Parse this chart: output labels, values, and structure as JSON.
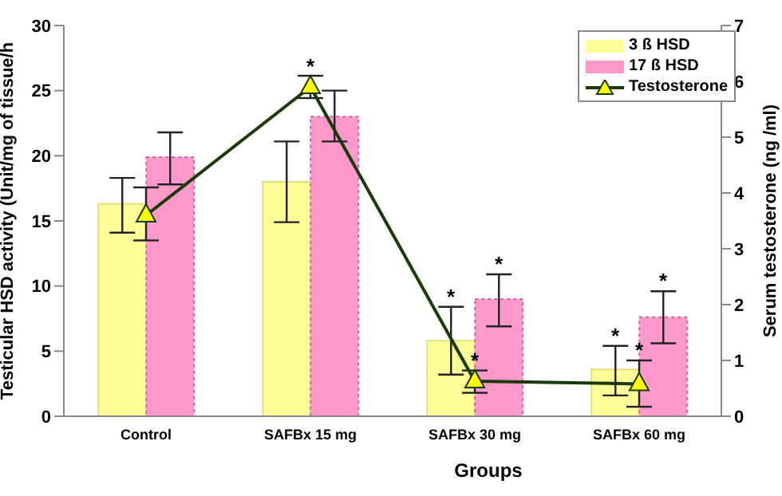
{
  "chart_data": {
    "type": "bar",
    "xlabel": "Groups",
    "ylabel": "Testicular HSD activity (Unit/mg of tissue/h",
    "y2label": "Serum testosterone (ng /ml)",
    "categories": [
      "Control",
      "SAFBx 15 mg",
      "SAFBx 30 mg",
      "SAFBx 60 mg"
    ],
    "series": [
      {
        "name": "3 ß HSD",
        "color": "#ffff99",
        "values": [
          16.3,
          18.0,
          5.8,
          3.6
        ],
        "errors": [
          [
            14.1,
            18.3
          ],
          [
            14.9,
            21.1
          ],
          [
            3.2,
            8.4
          ],
          [
            1.6,
            5.4
          ]
        ]
      },
      {
        "name": "17 ß HSD",
        "color": "#ff99cc",
        "values": [
          19.9,
          23.0,
          9.0,
          7.6
        ],
        "errors": [
          [
            17.8,
            21.8
          ],
          [
            21.1,
            25.0
          ],
          [
            6.9,
            10.9
          ],
          [
            5.6,
            9.6
          ]
        ]
      },
      {
        "name": "Testosterone",
        "type": "line",
        "axis": "y2",
        "color": "#1a3a0a",
        "marker": "triangle",
        "values": [
          3.6,
          5.9,
          0.63,
          0.58
        ],
        "errors": [
          [
            3.15,
            4.1
          ],
          [
            5.7,
            6.1
          ],
          [
            0.42,
            0.82
          ],
          [
            0.17,
            1.0
          ]
        ]
      }
    ],
    "ylim": [
      0,
      30
    ],
    "yticks": [
      0,
      5,
      10,
      15,
      20,
      25,
      30
    ],
    "y2lim": [
      0,
      7
    ],
    "y2ticks": [
      0,
      1,
      2,
      3,
      4,
      5,
      6,
      7
    ],
    "grid": false,
    "legend": "top right",
    "annotations": [
      {
        "text": "*",
        "x": "SAFBx 15 mg",
        "y": 26.1
      },
      {
        "text": "*",
        "x": "SAFBx 30 mg",
        "y": 8.4
      },
      {
        "text": "*",
        "x": "SAFBx 30 mg",
        "y": 9.0
      },
      {
        "text": "*",
        "x": "SAFBx 30 mg",
        "y": 3.5
      },
      {
        "text": "*",
        "x": "SAFBx 60 mg",
        "y": 5.4
      },
      {
        "text": "*",
        "x": "SAFBx 60 mg",
        "y": 4.3
      },
      {
        "text": "*",
        "x": "SAFBx 60 mg",
        "y": 7.6
      }
    ]
  }
}
